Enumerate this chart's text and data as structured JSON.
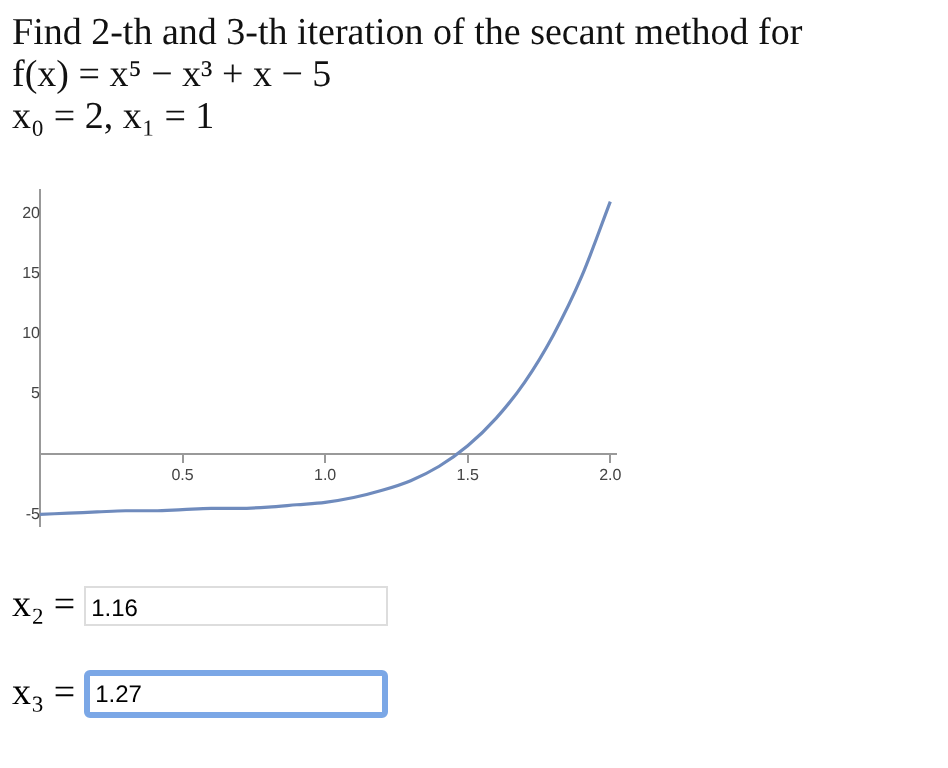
{
  "chart_data": {
    "type": "line",
    "title": "Find 2-th and 3-th iteration of the secant method for",
    "subtitle": "f(x) = x⁵ − x³ + x − 5",
    "annotations": [
      "x₀ = 2, x₁ = 1",
      "x₂ = 1.16",
      "x₃ = 1.27"
    ],
    "x": [
      0,
      0.1,
      0.2,
      0.3,
      0.4,
      0.5,
      0.6,
      0.7,
      0.8,
      0.9,
      1.0,
      1.1,
      1.2,
      1.3,
      1.4,
      1.5,
      1.6,
      1.7,
      1.8,
      1.9,
      2.0
    ],
    "series": [
      {
        "color": "#6f8bbd",
        "values": [
          -5,
          -4.9,
          -4.8,
          -4.7,
          -4.7,
          -4.6,
          -4.5,
          -4.5,
          -4.4,
          -4.2,
          -4,
          -3.6,
          -3,
          -2.2,
          -1,
          0.7,
          3,
          6,
          9.9,
          14.8,
          21
        ]
      }
    ],
    "xlim": [
      0,
      2.02
    ],
    "ylim": [
      -6,
      22
    ],
    "xticks": [
      {
        "value": 0.5,
        "label": "0.5"
      },
      {
        "value": 1,
        "label": "1.0"
      },
      {
        "value": 1.5,
        "label": "1.5"
      },
      {
        "value": 2,
        "label": "2.0"
      }
    ],
    "yticks": [
      -5,
      5,
      10,
      15,
      20
    ],
    "grid": false,
    "marker": "none"
  }
}
